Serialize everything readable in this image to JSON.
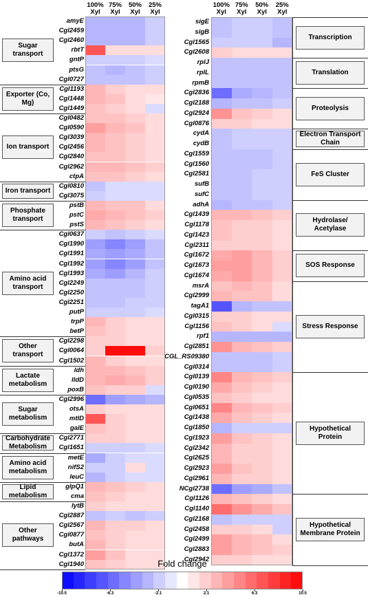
{
  "chart_data": [
    {
      "type": "heatmap",
      "columns": [
        "100% Xyl",
        "75% Xyl",
        "50% Xyl",
        "25% Xyl"
      ],
      "groups": [
        {
          "name": "Sugar transport",
          "rows": [
            "amyE",
            "Cgl2459",
            "Cgl2460",
            "rbtT",
            "gntP",
            "ptsG",
            "Cgl0727"
          ],
          "values": [
            [
              -3,
              -3,
              -3,
              -2
            ],
            [
              -3,
              -3,
              -3,
              -2
            ],
            [
              -3,
              -3,
              -3,
              -2
            ],
            [
              7,
              1.5,
              1.5,
              1.5
            ],
            [
              -2,
              -2,
              -2,
              -1.5
            ],
            [
              -2.5,
              -3,
              -2.5,
              -2
            ],
            [
              -2.5,
              -2.5,
              -2.5,
              -2
            ]
          ]
        },
        {
          "name": "Exporter (Co, Mg)",
          "rows": [
            "Cgl1193",
            "Cgl1448",
            "Cgl1449"
          ],
          "values": [
            [
              3,
              2,
              1.5,
              1.5
            ],
            [
              3,
              2.5,
              1.5,
              1
            ],
            [
              2.5,
              2,
              1.5,
              -1.5
            ]
          ]
        },
        {
          "name": "Ion transport",
          "rows": [
            "Cgl0482",
            "Cgl0590",
            "Cgl3039",
            "Cgl2456",
            "Cgl2840",
            "Cgl2962",
            "ctpA"
          ],
          "values": [
            [
              2.5,
              2.5,
              2,
              1.5
            ],
            [
              4,
              3,
              2.5,
              1.5
            ],
            [
              3,
              2.5,
              2,
              1.5
            ],
            [
              3,
              2.5,
              2,
              1.5
            ],
            [
              2.5,
              2.5,
              2,
              1.5
            ],
            [
              3,
              3,
              2.5,
              2
            ],
            [
              2.5,
              2.5,
              2,
              1.5
            ]
          ]
        },
        {
          "name": "Iron transport",
          "rows": [
            "Cgl0810",
            "Cgl3075"
          ],
          "values": [
            [
              -2.5,
              -1.5,
              -1.5,
              -1.5
            ],
            [
              -2,
              -1.5,
              -1.5,
              -1.5
            ]
          ]
        },
        {
          "name": "Phosphate transport",
          "rows": [
            "pstB",
            "pstC",
            "pstS"
          ],
          "values": [
            [
              3,
              2.5,
              2.5,
              1.5
            ],
            [
              3.5,
              3,
              2.5,
              2
            ],
            [
              3,
              2.5,
              2,
              1.5
            ]
          ]
        },
        {
          "name": "Amino acid transport",
          "rows": [
            "Cgl0637",
            "Cgl1990",
            "Cgl1991",
            "Cgl1992",
            "Cgl1993",
            "Cgl2249",
            "Cgl2250",
            "Cgl2251",
            "putP",
            "trpP",
            "betP"
          ],
          "values": [
            [
              -2,
              -2.5,
              -2,
              -1.5
            ],
            [
              -4,
              -5,
              -4,
              -2.5
            ],
            [
              -3.5,
              -4,
              -3.5,
              -2.5
            ],
            [
              -4,
              -5,
              -4,
              -2.5
            ],
            [
              -3.5,
              -4,
              -3,
              -2
            ],
            [
              -2.5,
              -2.5,
              -2.5,
              -2
            ],
            [
              -2.5,
              -2.5,
              -2.5,
              -2
            ],
            [
              -2.5,
              -2.5,
              -2,
              -2
            ],
            [
              -2,
              -2,
              -2,
              -1.5
            ],
            [
              3,
              2,
              1.5,
              1.5
            ],
            [
              2.5,
              2,
              1.5,
              1.5
            ]
          ]
        },
        {
          "name": "Other transport",
          "rows": [
            "Cgl2298",
            "Cgl0064",
            "Cgl1502"
          ],
          "values": [
            [
              2,
              2,
              1.5,
              1.5
            ],
            [
              2,
              10,
              10,
              2
            ],
            [
              3,
              2,
              1.5,
              1.5
            ]
          ]
        },
        {
          "name": "Lactate metabolism",
          "rows": [
            "ldh",
            "lldD",
            "poxB"
          ],
          "values": [
            [
              3,
              3,
              2.5,
              2
            ],
            [
              3,
              3.5,
              3,
              2
            ],
            [
              2.5,
              2,
              2,
              -1.5
            ]
          ]
        },
        {
          "name": "Sugar metabolism",
          "rows": [
            "Cgl2996",
            "otsA",
            "mtlD",
            "galE"
          ],
          "values": [
            [
              -6,
              -4,
              -3.5,
              -3
            ],
            [
              2,
              1.5,
              1.5,
              1.5
            ],
            [
              7,
              2,
              1.5,
              1.5
            ],
            [
              2.5,
              2,
              1.5,
              1.5
            ]
          ]
        },
        {
          "name": "Carbohydrate Metabolism",
          "rows": [
            "Cgl2771",
            "Cgl1651"
          ],
          "values": [
            [
              2,
              2,
              1.5,
              1.5
            ],
            [
              -2,
              -2,
              -2,
              -1.5
            ]
          ]
        },
        {
          "name": "Amino acid metabolism",
          "rows": [
            "metE",
            "nifS2",
            "leuC"
          ],
          "values": [
            [
              -3.5,
              -2,
              -1.5,
              -1.5
            ],
            [
              -2,
              -2,
              1.5,
              -1.5
            ],
            [
              -3,
              -2,
              -1.5,
              -1.5
            ]
          ]
        },
        {
          "name": "Lipid metabolism",
          "rows": [
            "glpQ1",
            "cma"
          ],
          "values": [
            [
              3,
              2.5,
              2,
              1.5
            ],
            [
              2.5,
              2,
              1.5,
              1.5
            ]
          ]
        },
        {
          "name": "Other pathways",
          "rows": [
            "lytB",
            "Cgl2887",
            "Cgl2567",
            "Cgl0877",
            "butA",
            "Cgl1372",
            "Cgl1940"
          ],
          "values": [
            [
              2,
              1.5,
              1.5,
              1.5
            ],
            [
              -2.5,
              -2,
              -2.5,
              -2
            ],
            [
              3,
              2,
              2,
              1.5
            ],
            [
              2.5,
              2,
              1.5,
              1.5
            ],
            [
              3,
              2,
              1.5,
              1.5
            ],
            [
              4,
              2.5,
              1.5,
              1.5
            ],
            [
              2.5,
              2,
              1.5,
              1.5
            ]
          ]
        }
      ]
    },
    {
      "type": "heatmap",
      "columns": [
        "100% Xyl",
        "75% Xyl",
        "50% Xyl",
        "25% Xyl"
      ],
      "groups": [
        {
          "name": "Transcription",
          "rows": [
            "sigE",
            "sigB",
            "Cgl1565",
            "Cgl2608"
          ],
          "values": [
            [
              -2.5,
              -2,
              -2,
              -2.5
            ],
            [
              -2.5,
              -2,
              -2,
              -2.5
            ],
            [
              -2,
              -2,
              -2,
              -3
            ],
            [
              2,
              1.5,
              1.5,
              1.5
            ]
          ]
        },
        {
          "name": "Translation",
          "rows": [
            "rplJ",
            "rplL",
            "rpmB"
          ],
          "values": [
            [
              -2.5,
              -2.5,
              -2.5,
              -2.5
            ],
            [
              -2.5,
              -2.5,
              -2.5,
              -2.5
            ],
            [
              -2.5,
              -2.5,
              -2.5,
              -2.5
            ]
          ]
        },
        {
          "name": "Proteolysis",
          "rows": [
            "Cgl2836",
            "Cgl2188",
            "Cgl2924",
            "Cgl0876"
          ],
          "values": [
            [
              -6,
              -3.5,
              -3,
              -2.5
            ],
            [
              -3,
              -2.5,
              -2.5,
              -2
            ],
            [
              4.5,
              2.5,
              2,
              1.5
            ],
            [
              2,
              2,
              1.5,
              1.5
            ]
          ]
        },
        {
          "name": "Electron Transport Chain",
          "rows": [
            "cydA",
            "cydB"
          ],
          "values": [
            [
              -2.5,
              -2,
              -2,
              -2
            ],
            [
              -2.5,
              -2,
              -2,
              -2
            ]
          ]
        },
        {
          "name": "FeS Cluster",
          "rows": [
            "Cgl1559",
            "Cgl1560",
            "Cgl2581",
            "sufB",
            "sufC"
          ],
          "values": [
            [
              -2.5,
              -2.5,
              -2.5,
              -2
            ],
            [
              -2.5,
              -2.5,
              -2.5,
              -2
            ],
            [
              -2.5,
              -2.5,
              -2,
              -2
            ],
            [
              -2.5,
              -2.5,
              -2,
              -2
            ],
            [
              -2.5,
              -2.5,
              -2,
              -2
            ]
          ]
        },
        {
          "name": "Hydrolase/ Acetylase",
          "rows": [
            "adhA",
            "Cgl1439",
            "Cgl1178",
            "Cgl1423",
            "Cgl2311"
          ],
          "values": [
            [
              -3,
              -2.5,
              -2.5,
              -2
            ],
            [
              3,
              3,
              2.5,
              2
            ],
            [
              2.5,
              2,
              2,
              1.5
            ],
            [
              2.5,
              2,
              2,
              1.5
            ],
            [
              2,
              2,
              2,
              1.5
            ]
          ]
        },
        {
          "name": "SOS Response",
          "rows": [
            "Cgl1672",
            "Cgl1673",
            "Cgl1674"
          ],
          "values": [
            [
              3.5,
              4,
              3,
              2
            ],
            [
              4,
              4,
              3,
              2
            ],
            [
              3.5,
              4,
              3,
              2
            ]
          ]
        },
        {
          "name": "Stress Response",
          "rows": [
            "msrA",
            "Cgl2999",
            "tagA1",
            "Cgl0315",
            "Cgl1156",
            "rpf1",
            "Cgl2851",
            "CGL_RS09380",
            "Cgl0314"
          ],
          "values": [
            [
              2.5,
              3,
              2.5,
              1.5
            ],
            [
              3,
              2.5,
              2.5,
              1.5
            ],
            [
              -7,
              -3,
              -2.5,
              -2.5
            ],
            [
              2,
              2,
              1.5,
              1.5
            ],
            [
              2.5,
              2,
              1.5,
              -1.5
            ],
            [
              -3,
              -3,
              -3,
              -3
            ],
            [
              4.5,
              3,
              2.5,
              2
            ],
            [
              -2.5,
              -2.5,
              -2.5,
              -2
            ],
            [
              -2.5,
              -2.5,
              -2.5,
              -2
            ]
          ]
        },
        {
          "name": "Hypothetical Protein",
          "rows": [
            "Cgl0139",
            "Cgl0190",
            "Cgl0535",
            "Cgl0651",
            "Cgl1438",
            "Cgl1850",
            "Cgl1923",
            "Cgl2342",
            "Cgl2625",
            "Cgl2923",
            "Cgl2961",
            "NCgl2738"
          ],
          "values": [
            [
              5,
              3,
              2.5,
              2
            ],
            [
              3.5,
              2.5,
              2,
              1.5
            ],
            [
              2.5,
              2,
              1.5,
              1.5
            ],
            [
              5,
              3,
              2.5,
              2
            ],
            [
              3.5,
              2.5,
              2,
              1.5
            ],
            [
              -3,
              -2,
              -2,
              -2
            ],
            [
              4,
              2.5,
              2,
              1.5
            ],
            [
              3,
              2,
              2,
              1.5
            ],
            [
              3,
              2,
              2,
              1.5
            ],
            [
              4,
              2.5,
              2,
              1.5
            ],
            [
              3,
              2,
              2,
              1.5
            ],
            [
              -6,
              -4,
              -3.5,
              -2.5
            ]
          ]
        },
        {
          "name": "Hypothetical Membrane Protein",
          "rows": [
            "Cgl1126",
            "Cgl1140",
            "Cgl2168",
            "Cgl2458",
            "Cgl2499",
            "Cgl2883",
            "Cgl2942"
          ],
          "values": [
            [
              3,
              2.5,
              2,
              1.5
            ],
            [
              6,
              4.5,
              3.5,
              2.5
            ],
            [
              -2.5,
              -2,
              -2,
              -2
            ],
            [
              2,
              2,
              1.5,
              -2
            ],
            [
              4,
              3,
              2.5,
              1.5
            ],
            [
              4,
              3,
              2.5,
              2
            ],
            [
              2,
              2,
              1.5,
              1.5
            ]
          ]
        }
      ]
    },
    {
      "type": "colorbar",
      "title": "Fold change",
      "xlim": [
        -10.5,
        10.5
      ],
      "xticks": [
        -10.5,
        -6.3,
        -2.1,
        2.1,
        6.3,
        10.5
      ],
      "colors": [
        "#0000ff",
        "#ffffff",
        "#ff0000"
      ]
    }
  ]
}
